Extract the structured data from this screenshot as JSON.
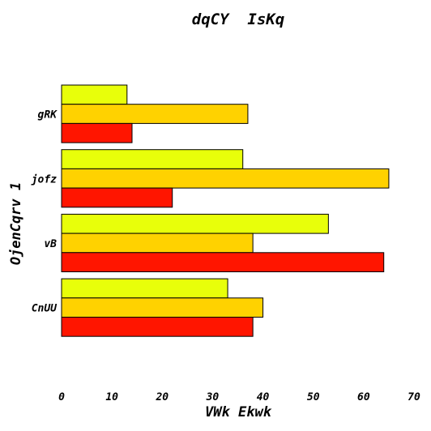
{
  "chart_data": {
    "type": "bar",
    "orientation": "horizontal",
    "title": "dqCY  IsKq",
    "xlabel": "VWk Ekwk",
    "ylabel": "OjenCqrv 1",
    "categories": [
      "gRK",
      "jofz",
      "vB",
      "CnUU"
    ],
    "series": [
      {
        "color": "#e8ff0a",
        "values": [
          13,
          36,
          53,
          33
        ]
      },
      {
        "color": "#ffd200",
        "values": [
          37,
          65,
          38,
          40
        ]
      },
      {
        "color": "#ff1500",
        "values": [
          14,
          22,
          64,
          38
        ]
      }
    ],
    "xlim": [
      0,
      70
    ],
    "xticks": [
      "0",
      "10",
      "20",
      "30",
      "40",
      "50",
      "60",
      "70"
    ],
    "grid": false
  }
}
